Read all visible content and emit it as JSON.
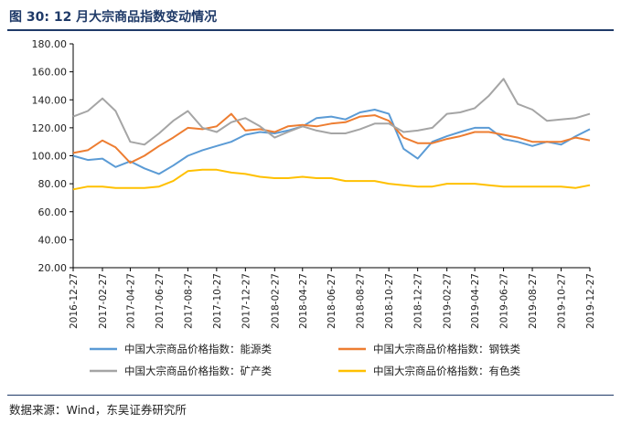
{
  "header": {
    "title": "图 30:  12 月大宗商品指数变动情况"
  },
  "footer": {
    "source": "数据来源：Wind，东吴证券研究所"
  },
  "colors": {
    "energy": "#5b9bd5",
    "steel": "#ed7d31",
    "mining": "#a5a5a5",
    "nonferrous": "#ffc000",
    "accent": "#1f3a68"
  },
  "chart_data": {
    "type": "line",
    "ylim": [
      20,
      180
    ],
    "yticks": [
      "20.00",
      "40.00",
      "60.00",
      "80.00",
      "100.00",
      "120.00",
      "140.00",
      "160.00",
      "180.00"
    ],
    "xticks": [
      "2016-12-27",
      "2017-02-27",
      "2017-04-27",
      "2017-06-27",
      "2017-08-27",
      "2017-10-27",
      "2017-12-27",
      "2018-02-27",
      "2018-04-27",
      "2018-06-27",
      "2018-08-27",
      "2018-10-27",
      "2018-12-27",
      "2019-02-27",
      "2019-04-27",
      "2019-06-27",
      "2019-08-27",
      "2019-10-27",
      "2019-12-27"
    ],
    "x_dates": [
      "2016-12-27",
      "2017-01-27",
      "2017-02-27",
      "2017-03-27",
      "2017-04-27",
      "2017-05-27",
      "2017-06-27",
      "2017-07-27",
      "2017-08-27",
      "2017-09-27",
      "2017-10-27",
      "2017-11-27",
      "2017-12-27",
      "2018-01-27",
      "2018-02-27",
      "2018-03-27",
      "2018-04-27",
      "2018-05-27",
      "2018-06-27",
      "2018-07-27",
      "2018-08-27",
      "2018-09-27",
      "2018-10-27",
      "2018-11-27",
      "2018-12-27",
      "2019-01-27",
      "2019-02-27",
      "2019-03-27",
      "2019-04-27",
      "2019-05-27",
      "2019-06-27",
      "2019-07-27",
      "2019-08-27",
      "2019-09-27",
      "2019-10-27",
      "2019-11-27",
      "2019-12-27"
    ],
    "legend_position": "bottom",
    "series": [
      {
        "name": "中国大宗商品价格指数：能源类",
        "color_key": "energy",
        "values": [
          100,
          97,
          98,
          92,
          96,
          91,
          87,
          93,
          100,
          104,
          107,
          110,
          115,
          117,
          116,
          118,
          121,
          127,
          128,
          126,
          131,
          133,
          130,
          105,
          98,
          110,
          114,
          117,
          120,
          120,
          112,
          110,
          107,
          110,
          108,
          114,
          119
        ]
      },
      {
        "name": "中国大宗商品价格指数：钢铁类",
        "color_key": "steel",
        "values": [
          102,
          104,
          111,
          106,
          95,
          100,
          107,
          113,
          120,
          119,
          121,
          130,
          118,
          119,
          117,
          121,
          122,
          121,
          123,
          124,
          128,
          129,
          125,
          113,
          109,
          109,
          112,
          114,
          117,
          117,
          115,
          113,
          110,
          110,
          110,
          113,
          111
        ]
      },
      {
        "name": "中国大宗商品价格指数：矿产类",
        "color_key": "mining",
        "values": [
          128,
          132,
          141,
          132,
          110,
          108,
          116,
          125,
          132,
          120,
          117,
          124,
          127,
          121,
          113,
          117,
          121,
          118,
          116,
          116,
          119,
          123,
          123,
          117,
          118,
          120,
          130,
          131,
          134,
          143,
          155,
          137,
          133,
          125,
          126,
          127,
          130
        ]
      },
      {
        "name": "中国大宗商品价格指数：有色类",
        "color_key": "nonferrous",
        "values": [
          76,
          78,
          78,
          77,
          77,
          77,
          78,
          82,
          89,
          90,
          90,
          88,
          87,
          85,
          84,
          84,
          85,
          84,
          84,
          82,
          82,
          82,
          80,
          79,
          78,
          78,
          80,
          80,
          80,
          79,
          78,
          78,
          78,
          78,
          78,
          77,
          79
        ]
      }
    ]
  }
}
